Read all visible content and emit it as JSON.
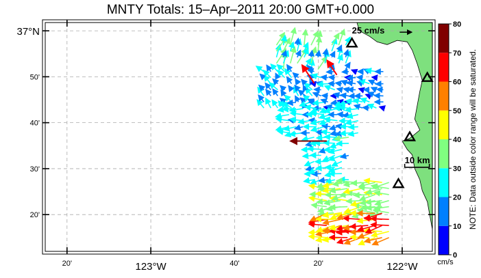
{
  "title": "MNTY Totals: 15–Apr–2011 20:00 GMT+0.000",
  "map": {
    "lat_range": [
      36.2,
      37.03
    ],
    "lon_range": [
      -123.42,
      -121.88
    ],
    "land_color": "#7ee07e",
    "coast": [
      {
        "lat": 37.03,
        "lon": -122.18
      },
      {
        "lat": 37.0,
        "lon": -122.17
      },
      {
        "lat": 36.98,
        "lon": -122.13
      },
      {
        "lat": 36.96,
        "lon": -122.1
      },
      {
        "lat": 36.95,
        "lon": -122.06
      },
      {
        "lat": 36.965,
        "lon": -122.02
      },
      {
        "lat": 36.96,
        "lon": -121.98
      },
      {
        "lat": 36.93,
        "lon": -121.96
      },
      {
        "lat": 36.88,
        "lon": -121.94
      },
      {
        "lat": 36.85,
        "lon": -121.93
      },
      {
        "lat": 36.82,
        "lon": -121.92
      },
      {
        "lat": 36.78,
        "lon": -121.93
      },
      {
        "lat": 36.73,
        "lon": -121.94
      },
      {
        "lat": 36.68,
        "lon": -121.95
      },
      {
        "lat": 36.64,
        "lon": -121.93
      },
      {
        "lat": 36.61,
        "lon": -121.97
      },
      {
        "lat": 36.6,
        "lon": -122.0
      },
      {
        "lat": 36.57,
        "lon": -121.98
      },
      {
        "lat": 36.55,
        "lon": -121.96
      },
      {
        "lat": 36.5,
        "lon": -121.95
      },
      {
        "lat": 36.46,
        "lon": -121.93
      },
      {
        "lat": 36.42,
        "lon": -121.92
      },
      {
        "lat": 36.38,
        "lon": -121.9
      },
      {
        "lat": 36.33,
        "lon": -121.89
      },
      {
        "lat": 36.28,
        "lon": -121.88
      }
    ],
    "lat_ticks": [
      {
        "value": 37.0,
        "label": "37°N",
        "major": true
      },
      {
        "value": 36.8333,
        "label": "50'",
        "major": false
      },
      {
        "value": 36.6667,
        "label": "40'",
        "major": false
      },
      {
        "value": 36.5,
        "label": "30'",
        "major": false
      },
      {
        "value": 36.3333,
        "label": "20'",
        "major": false
      }
    ],
    "lon_ticks": [
      {
        "value": -123.3333,
        "label": "20'",
        "major": false
      },
      {
        "value": -123.0,
        "label": "123°W",
        "major": true
      },
      {
        "value": -122.6667,
        "label": "40'",
        "major": false
      },
      {
        "value": -122.3333,
        "label": "20'",
        "major": false
      },
      {
        "value": -122.0,
        "label": "122°W",
        "major": true
      }
    ]
  },
  "stations": [
    {
      "lat": 36.955,
      "lon": -122.2
    },
    {
      "lat": 36.83,
      "lon": -121.9
    },
    {
      "lat": 36.615,
      "lon": -121.97
    },
    {
      "lat": 36.445,
      "lon": -122.015
    }
  ],
  "scale_arrow": {
    "label": "25 cm/s",
    "speed": 25
  },
  "scale_bar": {
    "label": "10 km",
    "km": 10
  },
  "colorbar": {
    "ticks": [
      "0",
      "10",
      "20",
      "30",
      "40",
      "50",
      "60",
      "70",
      "80"
    ],
    "unit": "cm/s",
    "note": "NOTE: Data outside color range will be saturated.",
    "colors": [
      "#0000ff",
      "#0080ff",
      "#00ffff",
      "#80ff80",
      "#ffff00",
      "#ff8000",
      "#ff0000",
      "#800000"
    ]
  },
  "chart_data": {
    "type": "vector_field",
    "title": "MNTY Totals: 15–Apr–2011 20:00 GMT+0.000",
    "units": "cm/s",
    "color_range": [
      0,
      80
    ],
    "regions": [
      {
        "lat": [
          36.86,
          36.96
        ],
        "lon": [
          -122.5,
          -122.2
        ],
        "dir_deg": 20,
        "speed": [
          12,
          40
        ]
      },
      {
        "lat": [
          36.72,
          36.86
        ],
        "lon": [
          -122.55,
          -122.35
        ],
        "dir_deg": -40,
        "speed": [
          10,
          25
        ]
      },
      {
        "lat": [
          36.72,
          36.86
        ],
        "lon": [
          -122.35,
          -122.05
        ],
        "dir_deg": -80,
        "speed": [
          8,
          24
        ]
      },
      {
        "lat": [
          36.63,
          36.74
        ],
        "lon": [
          -122.45,
          -122.15
        ],
        "dir_deg": -95,
        "speed": [
          14,
          30
        ]
      },
      {
        "lat": [
          36.46,
          36.63
        ],
        "lon": [
          -122.35,
          -122.2
        ],
        "dir_deg": -100,
        "speed": [
          18,
          32
        ]
      },
      {
        "lat": [
          36.34,
          36.46
        ],
        "lon": [
          -122.3,
          -122.05
        ],
        "dir_deg": -95,
        "speed": [
          30,
          45
        ]
      },
      {
        "lat": [
          36.25,
          36.34
        ],
        "lon": [
          -122.3,
          -122.05
        ],
        "dir_deg": -100,
        "speed": [
          40,
          70
        ]
      }
    ],
    "highlight_vectors": [
      {
        "lat": 36.6,
        "lon": -122.3,
        "u": -30,
        "v": 0,
        "speed": 80
      },
      {
        "lat": 36.81,
        "lon": -122.35,
        "u": -10,
        "v": 15,
        "speed": 62
      },
      {
        "lat": 36.84,
        "lon": -122.26,
        "u": -8,
        "v": 12,
        "speed": 60
      }
    ]
  }
}
